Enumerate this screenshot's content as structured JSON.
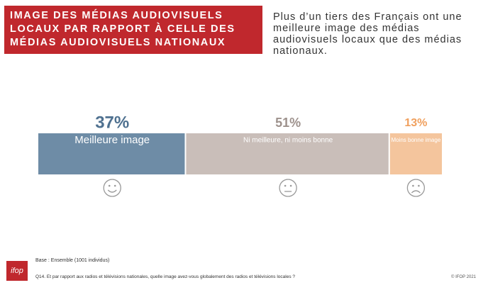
{
  "header": {
    "title": "IMAGE DES MÉDIAS AUDIOVISUELS LOCAUX PAR RAPPORT À CELLE DES MÉDIAS AUDIOVISUELS NATIONAUX",
    "subtitle": "Plus d’un tiers des Français ont une meilleure image des médias audiovisuels locaux que des médias nationaux."
  },
  "chart_data": {
    "type": "stacked-bar",
    "categories": [
      "Meilleure image",
      "Ni meilleure, ni moins bonne",
      "Moins bonne image"
    ],
    "values": [
      37,
      51,
      13
    ],
    "value_labels": [
      "37%",
      "51%",
      "13%"
    ],
    "colors": [
      "#6e8ca6",
      "#c9beb9",
      "#f4c59d"
    ],
    "label_colors": [
      "#4f7190",
      "#9d918c",
      "#f0a05e"
    ]
  },
  "footer": {
    "logo": "ifop",
    "base": "Base : Ensemble (1001 individus)",
    "question": "Q14. Et par rapport aux radios et télévisions nationales, quelle image avez-vous globalement des radios et télévisions locales ?",
    "copyright": "© IFOP 2021"
  }
}
